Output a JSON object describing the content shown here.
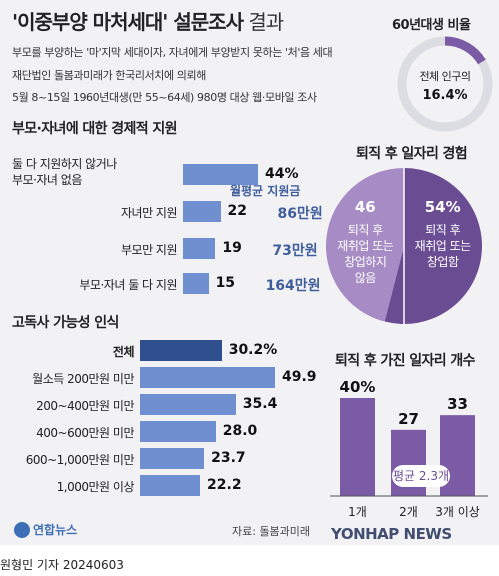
{
  "header": {
    "title_main": "'이중부양 마처세대' 설문조사",
    "title_suffix": " 결과",
    "lines": [
      "부모를 부양하는 '마'지막 세대이자, 자녀에게 부양받지 못하는 '처'음 세대",
      "재단법인 돌봄과미래가 한국리서치에 의뢰해",
      "5월 8~15일 1960년대생(만 55~64세) 980명 대상 웹·모바일 조사"
    ]
  },
  "donut": {
    "title": "60년대생 비율",
    "label": "전체 인구의",
    "value_text": "16.4%",
    "value": 16.4,
    "color": "#7b5aa6",
    "track_color": "#dcdce3"
  },
  "chart_data": [
    {
      "type": "bar",
      "title": "부모·자녀에 대한 경제적 지원",
      "categories": [
        "둘 다 지원하지 않거나 부모·자녀 없음",
        "자녀만 지원",
        "부모만 지원",
        "부모·자녀 둘 다 지원"
      ],
      "category_lines": [
        [
          "둘 다 지원하지 않거나",
          "부모·자녀 없음"
        ],
        [
          "자녀만 지원"
        ],
        [
          "부모만 지원"
        ],
        [
          "부모·자녀 둘 다 지원"
        ]
      ],
      "values": [
        44,
        22,
        19,
        15
      ],
      "value_labels": [
        "44%",
        "22",
        "19",
        "15"
      ],
      "annotation_title": "월평균 지원금",
      "monthly_support": [
        null,
        "86만원",
        "73만원",
        "164만원"
      ],
      "color": "#6f8fd0"
    },
    {
      "type": "pie",
      "title": "퇴직 후 일자리 경험",
      "slices": [
        {
          "name": "퇴직 후 재취업 또는 창업함",
          "value": 54,
          "value_label": "54%",
          "lines": [
            "퇴직 후",
            "재취업 또는",
            "창업함"
          ],
          "color": "#6a4c93"
        },
        {
          "name": "퇴직 후 재취업 또는 창업하지 않음",
          "value": 46,
          "value_label": "46",
          "lines": [
            "퇴직 후",
            "재취업 또는",
            "창업하지",
            "않음"
          ],
          "color": "#a78bc4"
        }
      ]
    },
    {
      "type": "bar",
      "title": "고독사 가능성 인식",
      "categories": [
        "전체",
        "월소득 200만원 미만",
        "200~400만원 미만",
        "400~600만원 미만",
        "600~1,000만원 미만",
        "1,000만원 이상"
      ],
      "values": [
        30.2,
        49.9,
        35.4,
        28.0,
        23.7,
        22.2
      ],
      "value_labels": [
        "30.2%",
        "49.9",
        "35.4",
        "28.0",
        "23.7",
        "22.2"
      ],
      "color": "#6f8fd0",
      "highlight_color": "#2f4f8f"
    },
    {
      "type": "bar",
      "title": "퇴직 후 가진 일자리 개수",
      "categories": [
        "1개",
        "2개",
        "3개 이상"
      ],
      "values": [
        40,
        27,
        33
      ],
      "value_labels": [
        "40%",
        "27",
        "33"
      ],
      "annotation": "평균 2.3개",
      "color": "#7b5aa6"
    }
  ],
  "source": "자료: 돌봄과미래",
  "logo": "연합뉴스",
  "watermark": "YONHAP NEWS",
  "byline": "원형민 기자  20240603"
}
